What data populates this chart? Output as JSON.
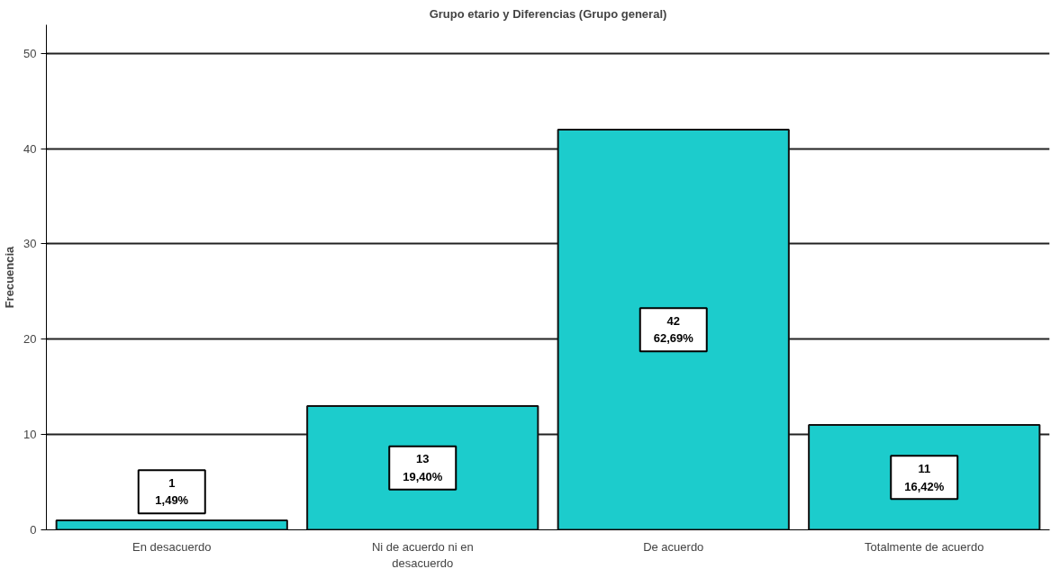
{
  "chart_data": {
    "type": "bar",
    "title": "Grupo etario y Diferencias (Grupo general)",
    "ylabel": "Frecuencia",
    "categories": [
      "En desacuerdo",
      "Ni de acuerdo ni en desacuerdo",
      "De acuerdo",
      "Totalmente de acuerdo"
    ],
    "values": [
      1,
      13,
      42,
      11
    ],
    "color": "#1ccccc",
    "value_labels": [
      "1\n1,49%",
      "13\n19,40%",
      "42\n62,69%",
      "11\n16,42%"
    ],
    "ylim": [
      0,
      53
    ],
    "yticks": [
      0,
      10,
      20,
      30,
      40,
      50
    ],
    "grid": "y"
  }
}
